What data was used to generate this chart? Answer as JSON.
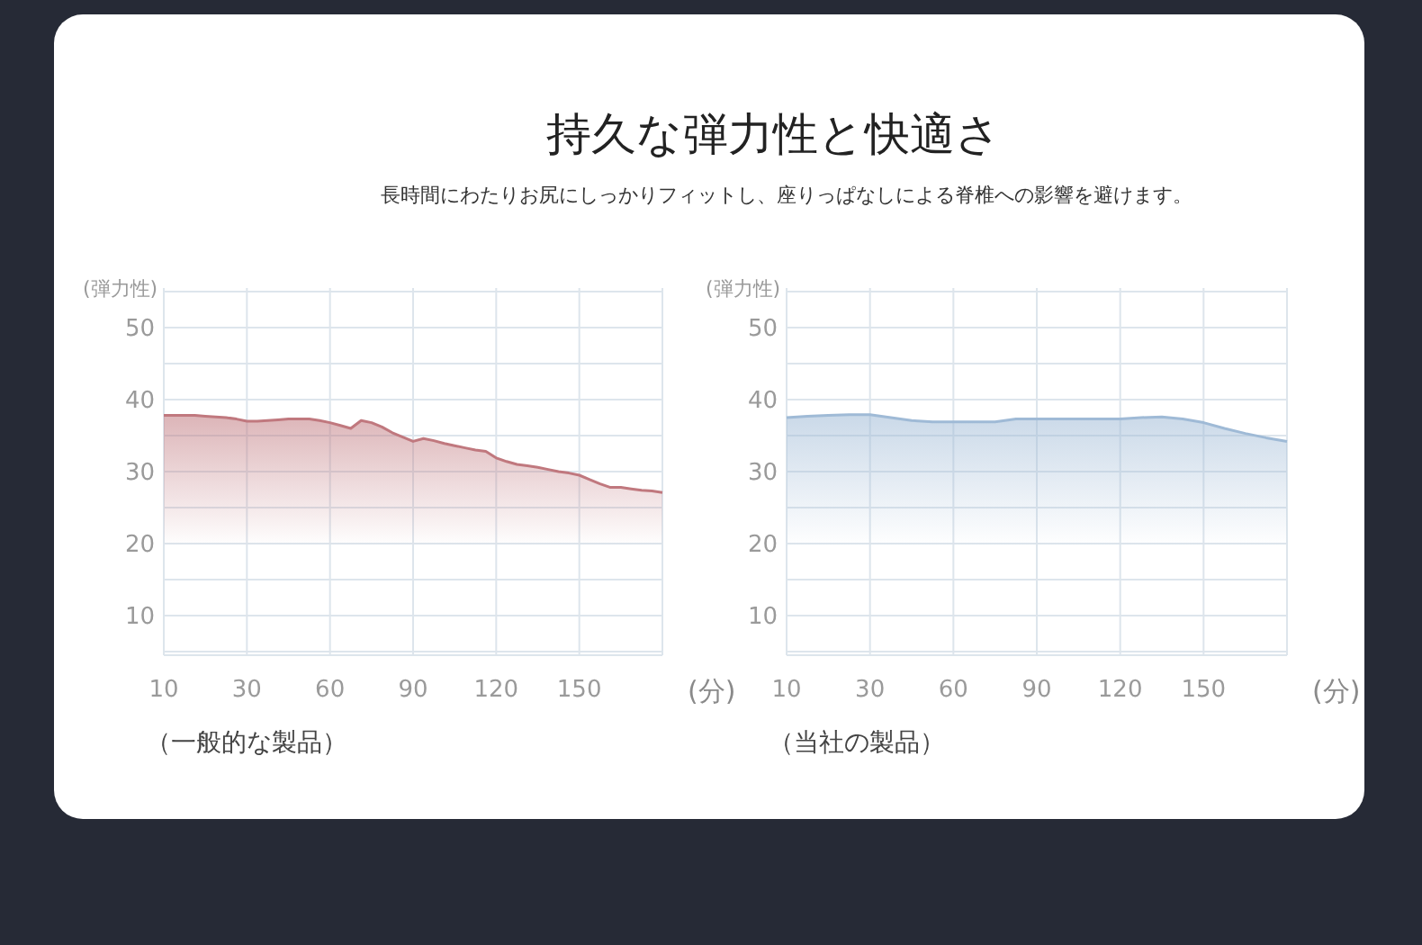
{
  "chart_data": [
    {
      "type": "area",
      "title": "持久な弾力性と快適さ",
      "subtitle": "長時間にわたりお尻にしっかりフィットし、座りっぱなしによる脊椎への影響を避けます。",
      "ylabel": "(弾力性)",
      "xlabel": "(分)",
      "annotations": [
        "（一般的な製品）"
      ],
      "categories": [
        "10",
        null,
        null,
        null,
        null,
        null,
        null,
        null,
        "30",
        null,
        null,
        null,
        null,
        null,
        null,
        null,
        "60",
        null,
        null,
        null,
        null,
        null,
        null,
        null,
        "90",
        null,
        null,
        null,
        null,
        null,
        null,
        null,
        "120",
        null,
        null,
        null,
        null,
        null,
        null,
        null,
        "150",
        null,
        null,
        null,
        null,
        null,
        null,
        null,
        null
      ],
      "series": [
        {
          "color": "#c0787e",
          "values": [
            37.8,
            37.8,
            37.8,
            37.8,
            37.7,
            37.6,
            37.5,
            37.3,
            37.0,
            37.0,
            37.1,
            37.2,
            37.3,
            37.3,
            37.3,
            37.1,
            36.8,
            36.4,
            36.0,
            37.1,
            36.8,
            36.2,
            35.4,
            34.8,
            34.2,
            34.6,
            34.3,
            33.9,
            33.6,
            33.3,
            33.0,
            32.8,
            31.9,
            31.4,
            31.0,
            30.8,
            30.6,
            30.3,
            30.0,
            29.8,
            29.5,
            28.9,
            28.3,
            27.8,
            27.8,
            27.6,
            27.4,
            27.3,
            27.1
          ]
        }
      ],
      "ylim": [
        4.5,
        55.5
      ],
      "yticks": [
        {
          "value": 5,
          "label": null
        },
        10,
        {
          "value": 15,
          "label": null
        },
        20,
        {
          "value": 25,
          "label": null
        },
        30,
        {
          "value": 35,
          "label": null
        },
        40,
        {
          "value": 45,
          "label": null
        },
        50,
        {
          "value": 55,
          "label": null
        }
      ],
      "grid": true
    },
    {
      "type": "area",
      "ylabel": "(弾力性)",
      "xlabel": "(分)",
      "annotations": [
        "（当社の製品）"
      ],
      "categories": [
        "10",
        null,
        null,
        null,
        "30",
        null,
        null,
        null,
        "60",
        null,
        null,
        null,
        "90",
        null,
        null,
        null,
        "120",
        null,
        null,
        null,
        "150",
        null,
        null,
        null,
        null
      ],
      "series": [
        {
          "color": "#9fbad6",
          "values": [
            37.5,
            37.7,
            37.8,
            37.9,
            37.9,
            37.5,
            37.1,
            36.9,
            36.9,
            36.9,
            36.9,
            37.3,
            37.3,
            37.3,
            37.3,
            37.3,
            37.3,
            37.5,
            37.6,
            37.3,
            36.8,
            36.0,
            35.3,
            34.7,
            34.2
          ]
        }
      ],
      "ylim": [
        4.5,
        55.5
      ],
      "yticks": [
        {
          "value": 5,
          "label": null
        },
        10,
        {
          "value": 15,
          "label": null
        },
        20,
        {
          "value": 25,
          "label": null
        },
        30,
        {
          "value": 35,
          "label": null
        },
        40,
        {
          "value": 45,
          "label": null
        },
        50,
        {
          "value": 55,
          "label": null
        }
      ],
      "grid": true
    }
  ]
}
